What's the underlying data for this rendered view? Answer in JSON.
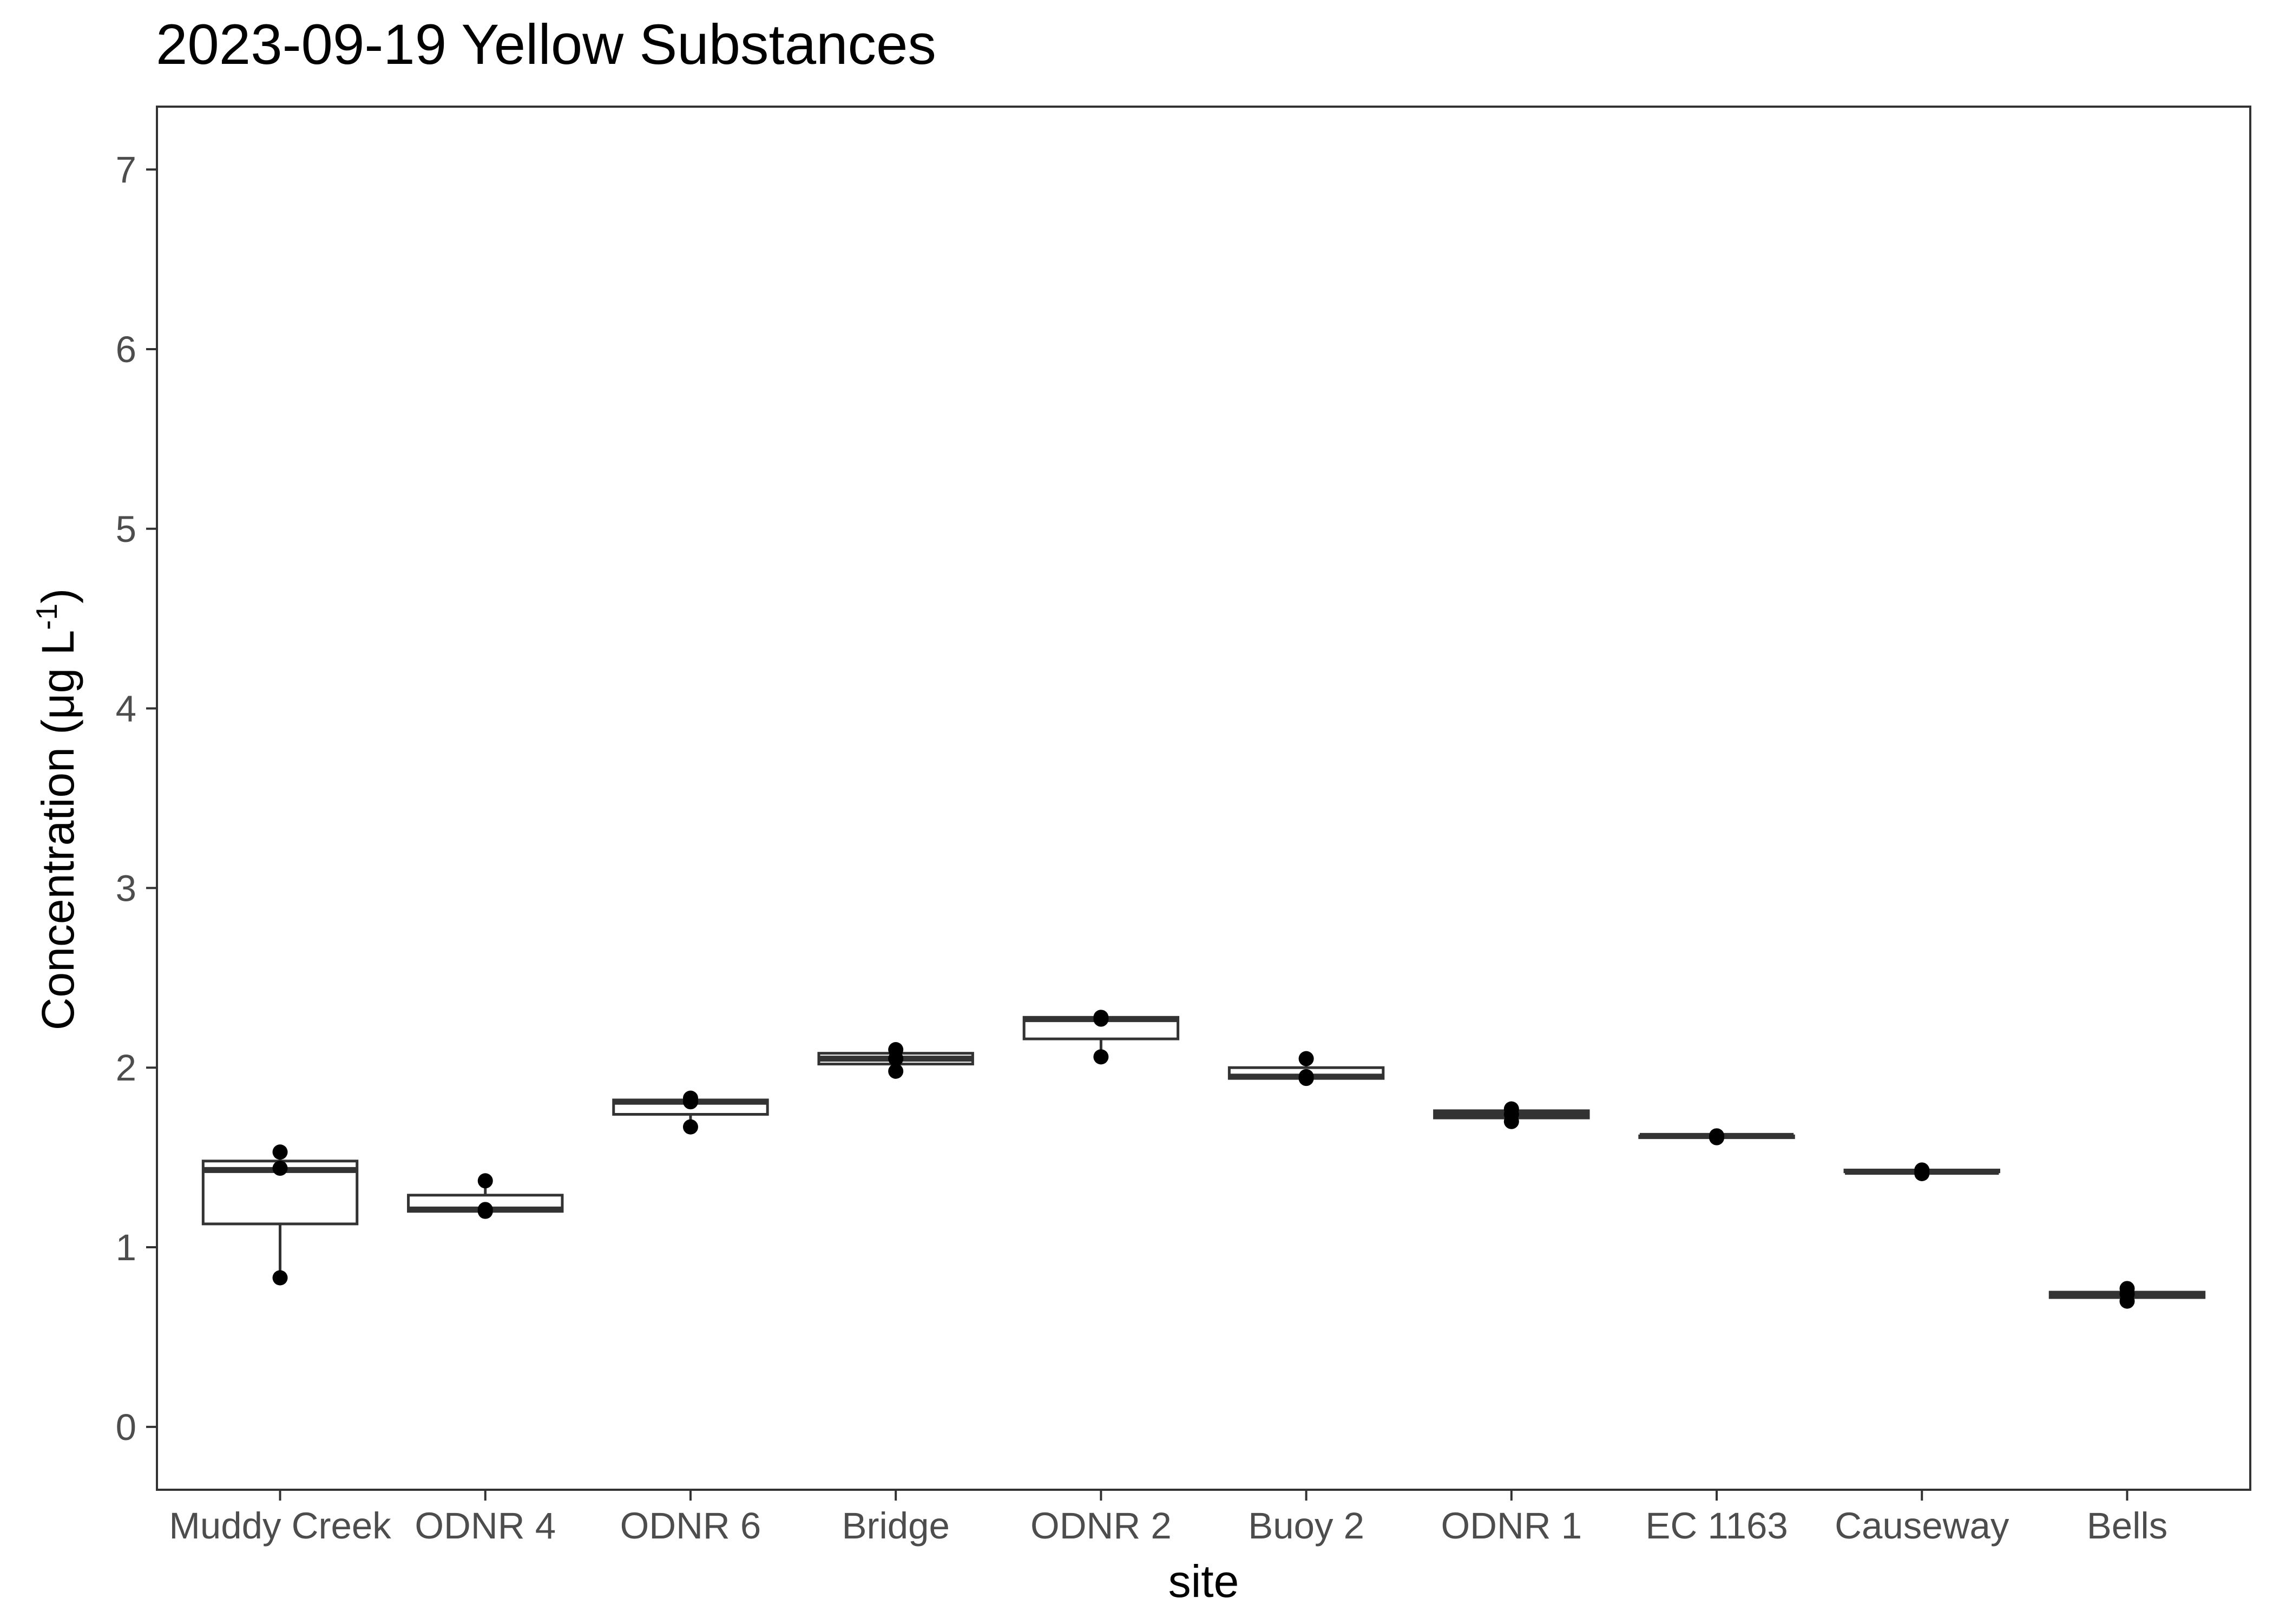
{
  "chart_data": {
    "type": "box",
    "title": "2023-09-19 Yellow Substances",
    "xlabel": "site",
    "ylabel": {
      "main": "Concentration (μg L",
      "superscript": "-1",
      "close": ")"
    },
    "ylim": [
      -0.35,
      7.35
    ],
    "yticks": [
      0,
      1,
      2,
      3,
      4,
      5,
      6,
      7
    ],
    "grid": false,
    "legend": "none",
    "colors": {
      "box_stroke": "#333333",
      "box_fill": "#ffffff",
      "point": "#000000",
      "panel_border": "#333333",
      "tick_label": "#4d4d4d"
    },
    "categories": [
      "Muddy Creek",
      "ODNR 4",
      "ODNR 6",
      "Bridge",
      "ODNR 2",
      "Buoy 2",
      "ODNR 1",
      "EC 1163",
      "Causeway",
      "Bells"
    ],
    "boxes": [
      {
        "site": "Muddy Creek",
        "min": 0.83,
        "q1": 1.13,
        "median": 1.43,
        "q3": 1.48,
        "max": 1.53,
        "points": [
          1.53,
          1.44,
          0.83
        ]
      },
      {
        "site": "ODNR 4",
        "min": 1.2,
        "q1": 1.2,
        "median": 1.21,
        "q3": 1.29,
        "max": 1.37,
        "points": [
          1.37,
          1.2,
          1.21
        ]
      },
      {
        "site": "ODNR 6",
        "min": 1.67,
        "q1": 1.74,
        "median": 1.81,
        "q3": 1.82,
        "max": 1.83,
        "points": [
          1.83,
          1.81,
          1.67
        ]
      },
      {
        "site": "Bridge",
        "min": 1.98,
        "q1": 2.02,
        "median": 2.05,
        "q3": 2.08,
        "max": 2.1,
        "points": [
          2.1,
          2.05,
          1.98
        ]
      },
      {
        "site": "ODNR 2",
        "min": 2.06,
        "q1": 2.16,
        "median": 2.27,
        "q3": 2.28,
        "max": 2.28,
        "points": [
          2.28,
          2.27,
          2.06
        ]
      },
      {
        "site": "Buoy 2",
        "min": 1.94,
        "q1": 1.94,
        "median": 1.95,
        "q3": 2.0,
        "max": 2.05,
        "points": [
          2.05,
          1.95,
          1.94
        ]
      },
      {
        "site": "ODNR 1",
        "min": 1.7,
        "q1": 1.72,
        "median": 1.74,
        "q3": 1.76,
        "max": 1.77,
        "points": [
          1.77,
          1.74,
          1.7
        ]
      },
      {
        "site": "EC 1163",
        "min": 1.61,
        "q1": 1.61,
        "median": 1.62,
        "q3": 1.62,
        "max": 1.62,
        "points": [
          1.62,
          1.62,
          1.61
        ]
      },
      {
        "site": "Causeway",
        "min": 1.41,
        "q1": 1.42,
        "median": 1.42,
        "q3": 1.43,
        "max": 1.43,
        "points": [
          1.43,
          1.42,
          1.41
        ]
      },
      {
        "site": "Bells",
        "min": 0.7,
        "q1": 0.72,
        "median": 0.74,
        "q3": 0.75,
        "max": 0.77,
        "points": [
          0.77,
          0.74,
          0.7
        ]
      }
    ]
  }
}
